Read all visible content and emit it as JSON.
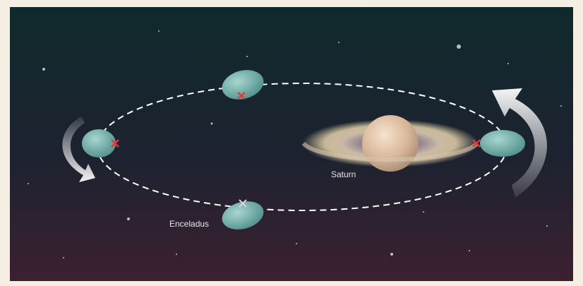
{
  "labels": {
    "planet": "Saturn",
    "moon": "Enceladus"
  }
}
